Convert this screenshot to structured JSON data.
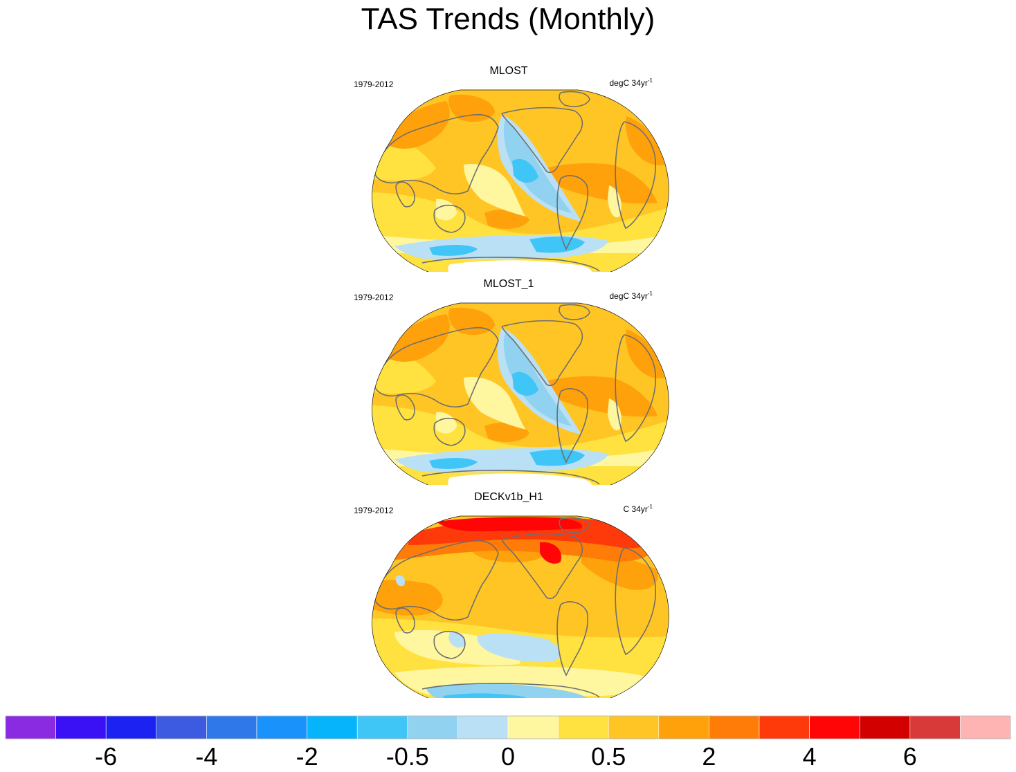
{
  "title": "TAS Trends (Monthly)",
  "chart_data": [
    {
      "type": "heatmap",
      "title": "MLOST",
      "period": "1979-2012",
      "units_prefix": "degC 34yr",
      "units_exp": "-1",
      "pattern": "mlost"
    },
    {
      "type": "heatmap",
      "title": "MLOST_1",
      "period": "1979-2012",
      "units_prefix": "degC 34yr",
      "units_exp": "-1",
      "pattern": "mlost"
    },
    {
      "type": "heatmap",
      "title": "DECKv1b_H1",
      "period": "1979-2012",
      "units_prefix": "C 34yr",
      "units_exp": "-1",
      "pattern": "deck"
    }
  ],
  "colorbar": {
    "colors": [
      "#8a2be2",
      "#3a10f5",
      "#1c22f2",
      "#3c5be0",
      "#2e78ea",
      "#1a92fb",
      "#05b4fb",
      "#40c5f7",
      "#90d2ef",
      "#b9e0f5",
      "#fff6a0",
      "#ffe140",
      "#ffc525",
      "#ffa10a",
      "#ff7c08",
      "#ff3a0a",
      "#ff0505",
      "#d30000",
      "#d83a3a",
      "#ffb4b4"
    ],
    "tick_labels": [
      "-6",
      "-4",
      "-2",
      "-0.5",
      "0",
      "0.5",
      "2",
      "4",
      "6"
    ]
  },
  "palette": {
    "coast": "#6e6e6e",
    "frame": "#111111",
    "antarctica": "#ffffff"
  }
}
